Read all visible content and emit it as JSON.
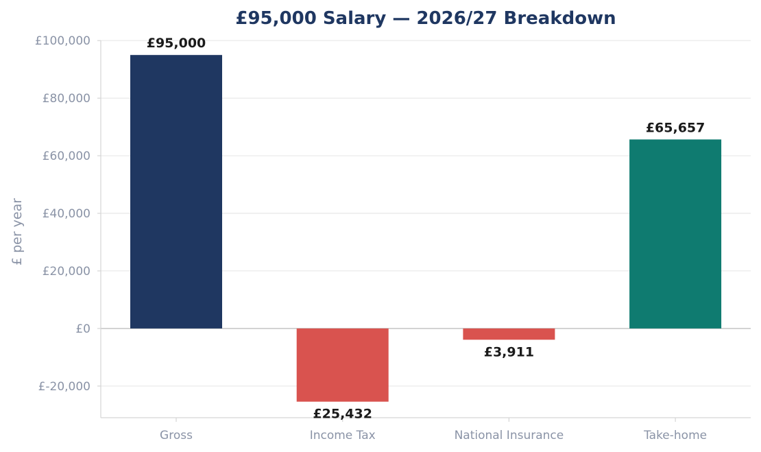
{
  "chart_data": {
    "type": "bar",
    "title": "£95,000 Salary — 2026/27 Breakdown",
    "xlabel": "",
    "ylabel": "£ per year",
    "ylim": [
      -31000,
      101000
    ],
    "yticks": [
      -20000,
      0,
      20000,
      40000,
      60000,
      80000,
      100000
    ],
    "ytick_labels": [
      "£-20,000",
      "£0",
      "£20,000",
      "£40,000",
      "£60,000",
      "£80,000",
      "£100,000"
    ],
    "categories": [
      "Gross",
      "Income Tax",
      "National Insurance",
      "Take-home"
    ],
    "values": [
      95000,
      -25432,
      -3911,
      65657
    ],
    "data_labels": [
      "£95,000",
      "£25,432",
      "£3,911",
      "£65,657"
    ],
    "colors": [
      "#1f3761",
      "#d9534f",
      "#d9534f",
      "#0f7b70"
    ],
    "grid": true,
    "legend": "none"
  },
  "colors": {
    "title": "#1f3761",
    "axis_text": "#8a93a6",
    "grid": "#e8e8e8",
    "zero_line": "#c4c4c4",
    "spine": "#d5d5d5",
    "label": "#1a1a1a"
  }
}
